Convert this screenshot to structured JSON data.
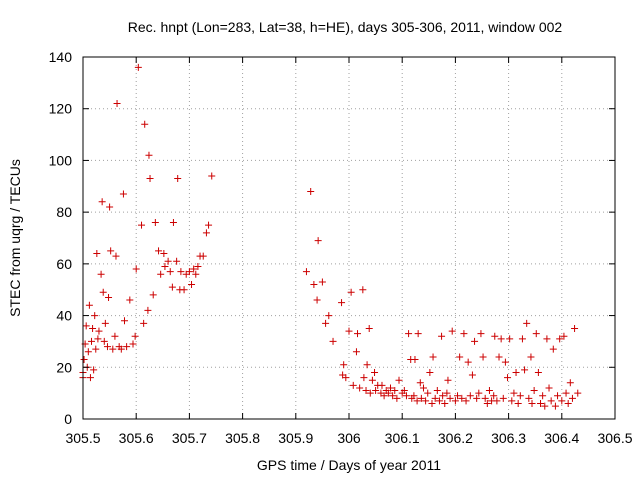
{
  "chart_data": {
    "type": "scatter",
    "title": "Rec. hnpt (Lon=283, Lat=38, h=HE), days 305-306, 2011, window 002",
    "xlabel": "GPS time / Days of year 2011",
    "ylabel": "STEC from uqrg / TECUs",
    "xlim": [
      305.5,
      306.5
    ],
    "ylim": [
      0,
      140
    ],
    "x_ticks": [
      305.5,
      305.6,
      305.7,
      305.8,
      305.9,
      306.0,
      306.1,
      306.2,
      306.3,
      306.4,
      306.5
    ],
    "x_tick_labels": [
      "305.5",
      "305.6",
      "305.7",
      "305.8",
      "305.9",
      "306",
      "306.1",
      "306.2",
      "306.3",
      "306.4",
      "306.5"
    ],
    "y_ticks": [
      0,
      20,
      40,
      60,
      80,
      100,
      120,
      140
    ],
    "y_tick_labels": [
      "0",
      "20",
      "40",
      "60",
      "80",
      "100",
      "120",
      "140"
    ],
    "grid": true,
    "marker": "plus",
    "series": [
      {
        "name": "STEC",
        "color": "#cc0000",
        "points": [
          [
            305.5,
            16
          ],
          [
            305.5,
            18
          ],
          [
            305.502,
            23
          ],
          [
            305.504,
            29
          ],
          [
            305.506,
            36
          ],
          [
            305.508,
            20
          ],
          [
            305.51,
            26
          ],
          [
            305.512,
            44
          ],
          [
            305.514,
            16
          ],
          [
            305.516,
            30
          ],
          [
            305.518,
            35
          ],
          [
            305.52,
            19
          ],
          [
            305.522,
            40
          ],
          [
            305.524,
            27
          ],
          [
            305.526,
            64
          ],
          [
            305.528,
            31
          ],
          [
            305.53,
            34
          ],
          [
            305.534,
            56
          ],
          [
            305.536,
            84
          ],
          [
            305.538,
            49
          ],
          [
            305.54,
            30
          ],
          [
            305.542,
            37
          ],
          [
            305.546,
            28
          ],
          [
            305.548,
            47
          ],
          [
            305.55,
            82
          ],
          [
            305.552,
            65
          ],
          [
            305.556,
            27
          ],
          [
            305.56,
            32
          ],
          [
            305.562,
            63
          ],
          [
            305.564,
            122
          ],
          [
            305.568,
            28
          ],
          [
            305.572,
            27
          ],
          [
            305.576,
            87
          ],
          [
            305.578,
            38
          ],
          [
            305.582,
            28
          ],
          [
            305.588,
            46
          ],
          [
            305.594,
            29
          ],
          [
            305.598,
            32
          ],
          [
            305.6,
            58
          ],
          [
            305.604,
            136
          ],
          [
            305.61,
            75
          ],
          [
            305.614,
            37
          ],
          [
            305.616,
            114
          ],
          [
            305.622,
            42
          ],
          [
            305.624,
            102
          ],
          [
            305.626,
            93
          ],
          [
            305.632,
            48
          ],
          [
            305.636,
            76
          ],
          [
            305.642,
            65
          ],
          [
            305.646,
            56
          ],
          [
            305.652,
            64
          ],
          [
            305.654,
            59
          ],
          [
            305.66,
            61
          ],
          [
            305.664,
            57
          ],
          [
            305.668,
            51
          ],
          [
            305.67,
            76
          ],
          [
            305.676,
            61
          ],
          [
            305.678,
            93
          ],
          [
            305.682,
            50
          ],
          [
            305.684,
            57
          ],
          [
            305.69,
            50
          ],
          [
            305.694,
            56
          ],
          [
            305.7,
            57
          ],
          [
            305.704,
            52
          ],
          [
            305.708,
            58
          ],
          [
            305.712,
            56
          ],
          [
            305.716,
            59
          ],
          [
            305.72,
            63
          ],
          [
            305.726,
            63
          ],
          [
            305.732,
            72
          ],
          [
            305.736,
            75
          ],
          [
            305.742,
            94
          ],
          [
            305.92,
            57
          ],
          [
            305.928,
            88
          ],
          [
            305.934,
            52
          ],
          [
            305.94,
            46
          ],
          [
            305.942,
            69
          ],
          [
            305.95,
            53
          ],
          [
            305.956,
            37
          ],
          [
            305.962,
            40
          ],
          [
            305.97,
            30
          ],
          [
            305.986,
            45
          ],
          [
            305.988,
            17
          ],
          [
            305.99,
            21
          ],
          [
            305.994,
            16
          ],
          [
            306.0,
            34
          ],
          [
            306.004,
            49
          ],
          [
            306.008,
            13
          ],
          [
            306.014,
            26
          ],
          [
            306.016,
            33
          ],
          [
            306.02,
            12
          ],
          [
            306.026,
            50
          ],
          [
            306.028,
            16
          ],
          [
            306.032,
            11
          ],
          [
            306.034,
            21
          ],
          [
            306.038,
            35
          ],
          [
            306.04,
            10
          ],
          [
            306.044,
            15
          ],
          [
            306.048,
            18
          ],
          [
            306.05,
            11
          ],
          [
            306.054,
            13
          ],
          [
            306.06,
            10
          ],
          [
            306.062,
            13
          ],
          [
            306.066,
            9
          ],
          [
            306.07,
            11
          ],
          [
            306.074,
            10
          ],
          [
            306.078,
            12
          ],
          [
            306.082,
            9
          ],
          [
            306.086,
            11
          ],
          [
            306.09,
            8
          ],
          [
            306.094,
            15
          ],
          [
            306.1,
            10
          ],
          [
            306.104,
            11
          ],
          [
            306.108,
            9
          ],
          [
            306.112,
            33
          ],
          [
            306.116,
            23
          ],
          [
            306.118,
            8
          ],
          [
            306.122,
            9
          ],
          [
            306.124,
            23
          ],
          [
            306.128,
            7
          ],
          [
            306.13,
            33
          ],
          [
            306.134,
            14
          ],
          [
            306.136,
            8
          ],
          [
            306.14,
            12
          ],
          [
            306.144,
            7
          ],
          [
            306.148,
            10
          ],
          [
            306.152,
            18
          ],
          [
            306.156,
            6
          ],
          [
            306.158,
            24
          ],
          [
            306.162,
            8
          ],
          [
            306.166,
            11
          ],
          [
            306.17,
            7
          ],
          [
            306.174,
            32
          ],
          [
            306.176,
            9
          ],
          [
            306.18,
            6
          ],
          [
            306.184,
            10
          ],
          [
            306.186,
            15
          ],
          [
            306.19,
            8
          ],
          [
            306.194,
            34
          ],
          [
            306.2,
            7
          ],
          [
            306.204,
            9
          ],
          [
            306.208,
            24
          ],
          [
            306.212,
            8
          ],
          [
            306.216,
            33
          ],
          [
            306.22,
            7
          ],
          [
            306.224,
            22
          ],
          [
            306.228,
            9
          ],
          [
            306.232,
            17
          ],
          [
            306.236,
            30
          ],
          [
            306.24,
            8
          ],
          [
            306.244,
            10
          ],
          [
            306.248,
            33
          ],
          [
            306.252,
            24
          ],
          [
            306.256,
            8
          ],
          [
            306.26,
            6
          ],
          [
            306.264,
            11
          ],
          [
            306.268,
            7
          ],
          [
            306.272,
            9
          ],
          [
            306.274,
            32
          ],
          [
            306.278,
            7
          ],
          [
            306.282,
            24
          ],
          [
            306.286,
            31
          ],
          [
            306.29,
            8
          ],
          [
            306.294,
            22
          ],
          [
            306.298,
            16
          ],
          [
            306.302,
            31
          ],
          [
            306.306,
            7
          ],
          [
            306.31,
            10
          ],
          [
            306.314,
            18
          ],
          [
            306.318,
            6
          ],
          [
            306.322,
            9
          ],
          [
            306.326,
            31
          ],
          [
            306.33,
            19
          ],
          [
            306.334,
            37
          ],
          [
            306.338,
            8
          ],
          [
            306.342,
            24
          ],
          [
            306.344,
            6
          ],
          [
            306.348,
            11
          ],
          [
            306.352,
            33
          ],
          [
            306.356,
            18
          ],
          [
            306.36,
            6
          ],
          [
            306.364,
            9
          ],
          [
            306.368,
            5
          ],
          [
            306.372,
            31
          ],
          [
            306.376,
            12
          ],
          [
            306.38,
            7
          ],
          [
            306.384,
            27
          ],
          [
            306.388,
            5
          ],
          [
            306.392,
            9
          ],
          [
            306.396,
            31
          ],
          [
            306.4,
            7
          ],
          [
            306.404,
            32
          ],
          [
            306.408,
            10
          ],
          [
            306.412,
            6
          ],
          [
            306.416,
            14
          ],
          [
            306.42,
            8
          ],
          [
            306.424,
            35
          ],
          [
            306.43,
            10
          ]
        ]
      }
    ]
  }
}
